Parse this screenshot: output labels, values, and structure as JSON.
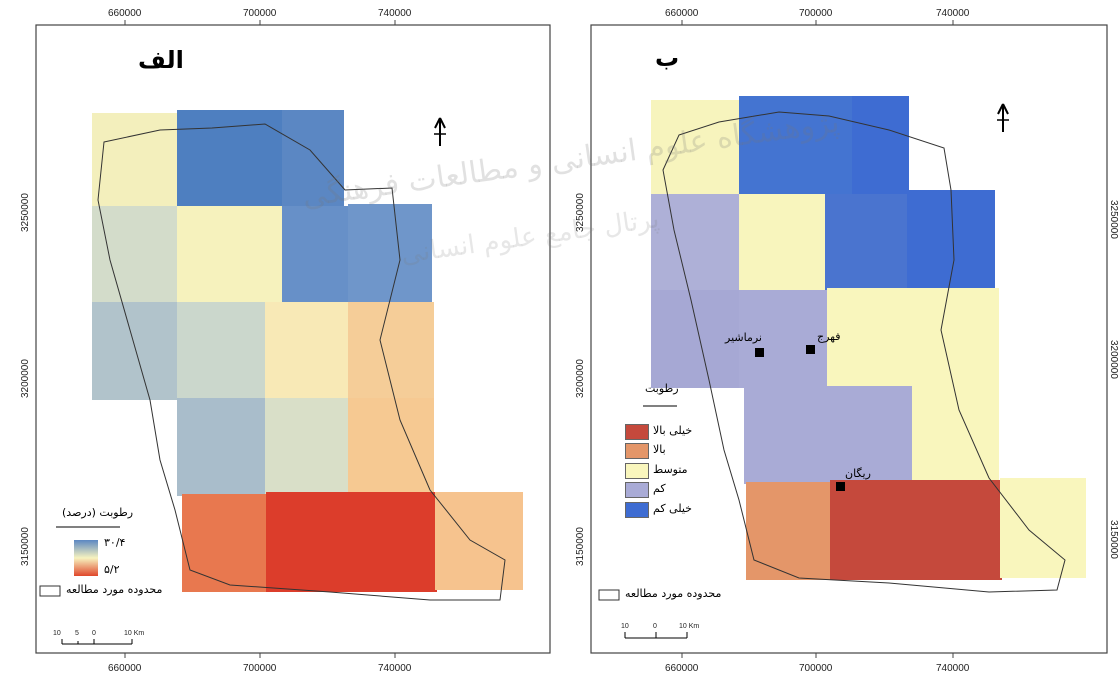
{
  "maps": {
    "left": {
      "title": "الف",
      "x_ticks": [
        "660000",
        "700000",
        "740000"
      ],
      "y_ticks": [
        "3250000",
        "3200000",
        "3150000"
      ],
      "legend": {
        "title": "رطوبت (درصد)",
        "high_value": "۳۰/۴",
        "low_value": "۵/۲",
        "boundary_label": "محدوده مورد مطالعه",
        "colors": {
          "high": "#5b87c2",
          "mid": "#f7f3bf",
          "low": "#e0472b"
        }
      },
      "scale": {
        "labels": [
          "10",
          "5",
          "0",
          "10 Km"
        ]
      }
    },
    "right": {
      "title": "ب",
      "x_ticks": [
        "660000",
        "700000",
        "740000"
      ],
      "y_ticks": [
        "3250000",
        "3200000",
        "3150000"
      ],
      "legend": {
        "title": "رطوبت",
        "classes": [
          {
            "label": "خیلی بالا",
            "color": "#c5493c"
          },
          {
            "label": "بالا",
            "color": "#e49669"
          },
          {
            "label": "متوسط",
            "color": "#f9f6bd"
          },
          {
            "label": "کم",
            "color": "#a9abd6"
          },
          {
            "label": "خیلی کم",
            "color": "#3e6cd2"
          }
        ],
        "boundary_label": "محدوده مورد مطالعه"
      },
      "towns": [
        "نرماشیر",
        "فهرج",
        "ریگان"
      ],
      "scale": {
        "labels": [
          "10",
          "0",
          "10 Km"
        ]
      }
    }
  },
  "north_arrow_label": "شمال",
  "watermark": {
    "line1": "پژوهشگاه علوم انسانی و مطالعات فرهنگی",
    "line2": "پرتال جامع علوم انسانی"
  }
}
